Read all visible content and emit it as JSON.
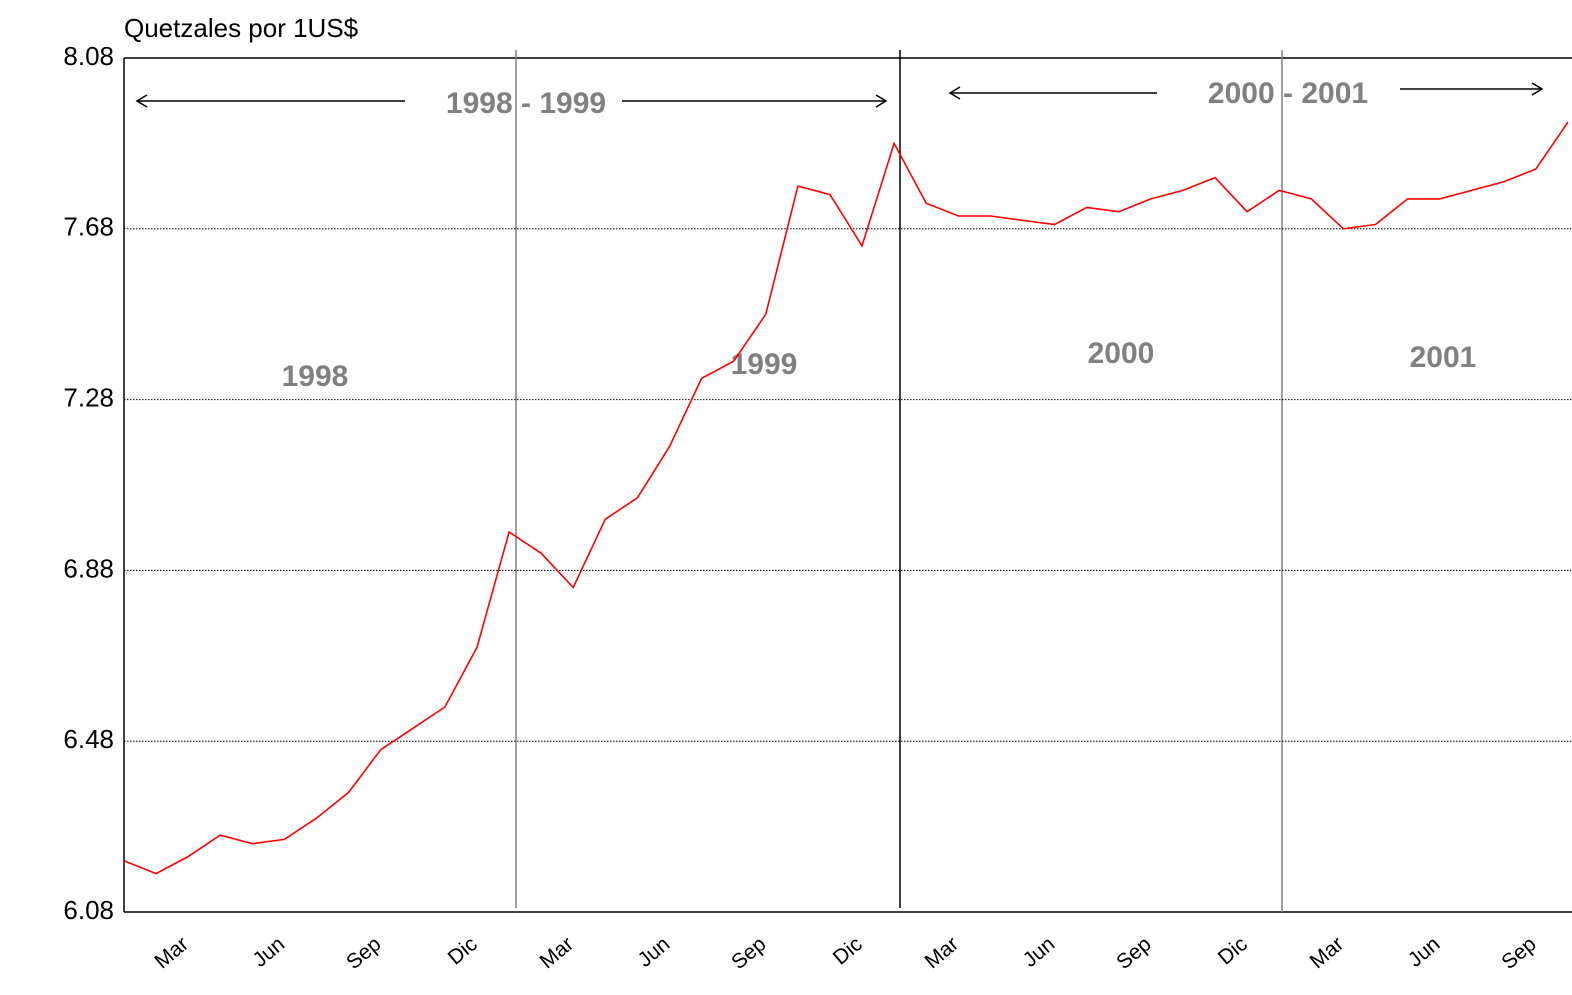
{
  "chart_data": {
    "type": "line",
    "ylabel": "Quetzales por 1US$",
    "categories": [
      null,
      null,
      "Mar",
      null,
      null,
      "Jun",
      null,
      null,
      "Sep",
      null,
      null,
      "Dic",
      null,
      null,
      "Mar",
      null,
      null,
      "Jun",
      null,
      null,
      "Sep",
      null,
      null,
      "Dic",
      null,
      null,
      "Mar",
      null,
      null,
      "Jun",
      null,
      null,
      "Sep",
      null,
      null,
      "Dic",
      null,
      null,
      "Mar",
      null,
      null,
      "Jun",
      null,
      null,
      "Sep",
      null
    ],
    "values": [
      6.2,
      6.17,
      6.21,
      6.26,
      6.24,
      6.25,
      6.3,
      6.36,
      6.46,
      6.51,
      6.56,
      6.7,
      6.97,
      6.92,
      6.84,
      7.0,
      7.05,
      7.17,
      7.33,
      7.37,
      7.48,
      7.78,
      7.76,
      7.64,
      7.88,
      7.74,
      7.71,
      7.71,
      7.7,
      7.69,
      7.73,
      7.72,
      7.75,
      7.77,
      7.8,
      7.72,
      7.77,
      7.75,
      7.68,
      7.69,
      7.75,
      7.75,
      7.77,
      7.79,
      7.82,
      7.93
    ],
    "color": "#ff0000",
    "ylim": [
      6.08,
      8.08
    ],
    "yticks": [
      {
        "value": 6.08,
        "label": "6.08"
      },
      {
        "value": 6.48,
        "label": "6.48"
      },
      {
        "value": 6.88,
        "label": "6.88"
      },
      {
        "value": 7.28,
        "label": "7.28"
      },
      {
        "value": 7.68,
        "label": "7.68"
      },
      {
        "value": 8.08,
        "label": "8.08"
      }
    ],
    "grid": true,
    "annotations": [
      "1998 - 1999",
      "2000 - 2001",
      "1998",
      "1999",
      "2000",
      "2001"
    ]
  }
}
